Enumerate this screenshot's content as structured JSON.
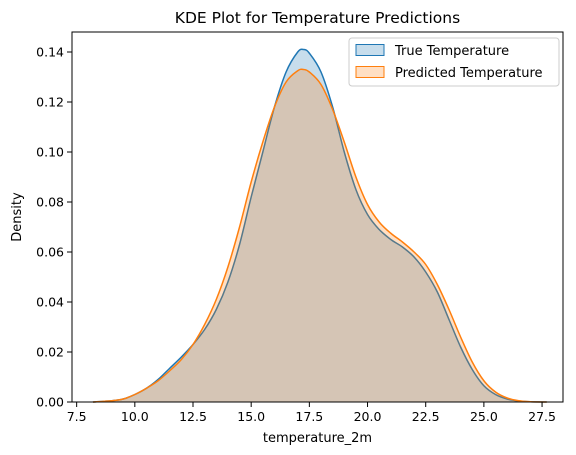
{
  "chart_data": {
    "type": "area",
    "title": "KDE Plot for Temperature Predictions",
    "xlabel": "temperature_2m",
    "ylabel": "Density",
    "xlim": [
      7.3,
      28.4
    ],
    "ylim": [
      0,
      0.148
    ],
    "x_ticks": [
      "7.5",
      "10.0",
      "12.5",
      "15.0",
      "17.5",
      "20.0",
      "22.5",
      "25.0",
      "27.5"
    ],
    "y_ticks": [
      "0.00",
      "0.02",
      "0.04",
      "0.06",
      "0.08",
      "0.10",
      "0.12",
      "0.14"
    ],
    "grid": false,
    "legend_position": "top-right",
    "series": [
      {
        "name": "True Temperature",
        "line_color": "#1f77b4",
        "fill_color": "#1f77b4",
        "fill_opacity": 0.25,
        "points": [
          [
            8.2,
            0.0
          ],
          [
            9.0,
            0.0005
          ],
          [
            9.5,
            0.0012
          ],
          [
            10.0,
            0.003
          ],
          [
            10.5,
            0.0055
          ],
          [
            11.0,
            0.009
          ],
          [
            11.5,
            0.0135
          ],
          [
            12.0,
            0.018
          ],
          [
            12.5,
            0.023
          ],
          [
            13.0,
            0.029
          ],
          [
            13.5,
            0.037
          ],
          [
            14.0,
            0.048
          ],
          [
            14.5,
            0.063
          ],
          [
            15.0,
            0.082
          ],
          [
            15.5,
            0.1
          ],
          [
            16.0,
            0.118
          ],
          [
            16.5,
            0.132
          ],
          [
            17.0,
            0.14
          ],
          [
            17.25,
            0.141
          ],
          [
            17.5,
            0.1395
          ],
          [
            18.0,
            0.132
          ],
          [
            18.5,
            0.118
          ],
          [
            19.0,
            0.1
          ],
          [
            19.5,
            0.085
          ],
          [
            20.0,
            0.075
          ],
          [
            20.5,
            0.069
          ],
          [
            21.0,
            0.065
          ],
          [
            21.5,
            0.062
          ],
          [
            22.0,
            0.058
          ],
          [
            22.5,
            0.052
          ],
          [
            23.0,
            0.044
          ],
          [
            23.5,
            0.033
          ],
          [
            24.0,
            0.022
          ],
          [
            24.5,
            0.013
          ],
          [
            25.0,
            0.0065
          ],
          [
            25.5,
            0.003
          ],
          [
            26.0,
            0.0012
          ],
          [
            26.5,
            0.0004
          ],
          [
            27.0,
            0.0001
          ],
          [
            27.7,
            0.0
          ]
        ]
      },
      {
        "name": "Predicted Temperature",
        "line_color": "#ff7f0e",
        "fill_color": "#ff7f0e",
        "fill_opacity": 0.25,
        "points": [
          [
            8.2,
            0.0
          ],
          [
            9.0,
            0.0005
          ],
          [
            9.5,
            0.0012
          ],
          [
            10.0,
            0.003
          ],
          [
            10.5,
            0.0055
          ],
          [
            11.0,
            0.0085
          ],
          [
            11.5,
            0.0125
          ],
          [
            12.0,
            0.017
          ],
          [
            12.5,
            0.023
          ],
          [
            13.0,
            0.031
          ],
          [
            13.5,
            0.041
          ],
          [
            14.0,
            0.054
          ],
          [
            14.5,
            0.07
          ],
          [
            15.0,
            0.088
          ],
          [
            15.5,
            0.104
          ],
          [
            16.0,
            0.118
          ],
          [
            16.5,
            0.128
          ],
          [
            17.0,
            0.1325
          ],
          [
            17.25,
            0.133
          ],
          [
            17.5,
            0.132
          ],
          [
            18.0,
            0.127
          ],
          [
            18.5,
            0.117
          ],
          [
            19.0,
            0.104
          ],
          [
            19.5,
            0.09
          ],
          [
            20.0,
            0.079
          ],
          [
            20.5,
            0.072
          ],
          [
            21.0,
            0.0675
          ],
          [
            21.5,
            0.064
          ],
          [
            22.0,
            0.06
          ],
          [
            22.5,
            0.055
          ],
          [
            23.0,
            0.047
          ],
          [
            23.5,
            0.037
          ],
          [
            24.0,
            0.026
          ],
          [
            24.5,
            0.016
          ],
          [
            25.0,
            0.0085
          ],
          [
            25.5,
            0.004
          ],
          [
            26.0,
            0.0016
          ],
          [
            26.5,
            0.0005
          ],
          [
            27.0,
            0.0001
          ],
          [
            27.7,
            0.0
          ]
        ]
      }
    ]
  }
}
